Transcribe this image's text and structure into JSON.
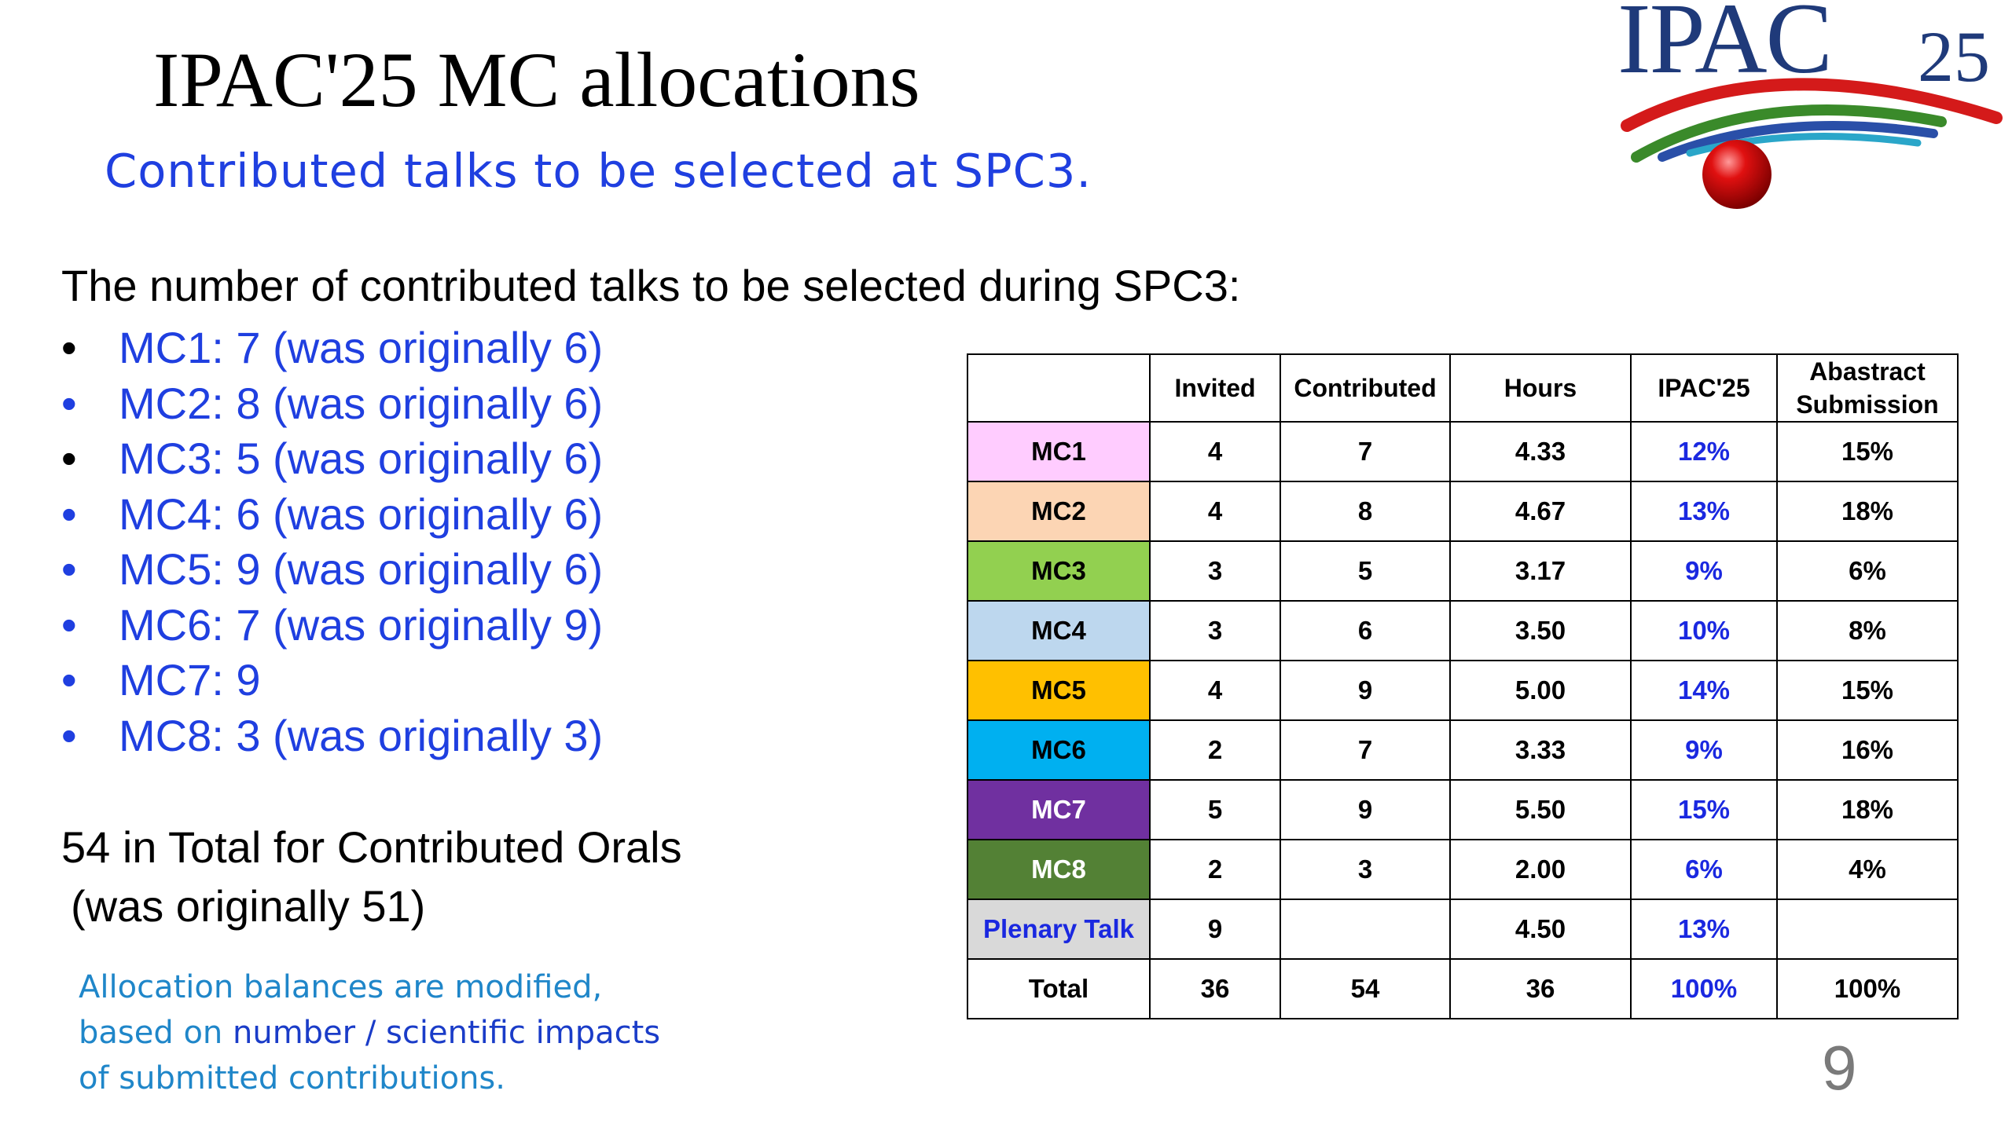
{
  "slide": {
    "title": "IPAC'25 MC allocations",
    "subtitle": "Contributed talks to be selected at SPC3.",
    "intro": "The number of contributed talks to be selected during SPC3:",
    "bullets": [
      "MC1: 7 (was originally 6)",
      "MC2: 8 (was originally 6)",
      "MC3: 5 (was originally 6)",
      "MC4: 6 (was originally 6)",
      "MC5: 9 (was originally 6)",
      "MC6: 7 (was originally 9)",
      "MC7: 9",
      "MC8: 3 (was originally 3)"
    ],
    "bullet_char": "•",
    "total_line1": "54 in Total for Contributed Orals",
    "total_line2": "(was originally 51)",
    "note_part1": "Allocation balances are modified,",
    "note_part2": "based on ",
    "note_highlight": "number / scientific impacts",
    "note_part3": "of submitted contributions.",
    "page_number": "9"
  },
  "logo": {
    "text": "IPAC",
    "year": "25",
    "colors": {
      "text": "#1f3a7a",
      "arc_red": "#d41a1a",
      "arc_green": "#3a8a2a",
      "arc_blue": "#2a4fa8",
      "arc_cyan": "#2aa6c9",
      "ball": "#e01010"
    }
  },
  "table": {
    "headers": [
      "",
      "Invited",
      "Contributed",
      "Hours",
      "IPAC'25",
      "Abastract Submission"
    ],
    "rows": [
      {
        "label": "MC1",
        "color": "#ffccff",
        "invited": "4",
        "contributed": "7",
        "hours": "4.33",
        "ipac": "12%",
        "submission": "15%"
      },
      {
        "label": "MC2",
        "color": "#fcd5b4",
        "invited": "4",
        "contributed": "8",
        "hours": "4.67",
        "ipac": "13%",
        "submission": "18%"
      },
      {
        "label": "MC3",
        "color": "#92d050",
        "invited": "3",
        "contributed": "5",
        "hours": "3.17",
        "ipac": "9%",
        "submission": "6%"
      },
      {
        "label": "MC4",
        "color": "#bdd7ee",
        "invited": "3",
        "contributed": "6",
        "hours": "3.50",
        "ipac": "10%",
        "submission": "8%"
      },
      {
        "label": "MC5",
        "color": "#ffc000",
        "invited": "4",
        "contributed": "9",
        "hours": "5.00",
        "ipac": "14%",
        "submission": "15%"
      },
      {
        "label": "MC6",
        "color": "#00b0f0",
        "invited": "2",
        "contributed": "7",
        "hours": "3.33",
        "ipac": "9%",
        "submission": "16%"
      },
      {
        "label": "MC7",
        "color": "#7030a0",
        "invited": "5",
        "contributed": "9",
        "hours": "5.50",
        "ipac": "15%",
        "submission": "18%"
      },
      {
        "label": "MC8",
        "color": "#538135",
        "invited": "2",
        "contributed": "3",
        "hours": "2.00",
        "ipac": "6%",
        "submission": "4%"
      },
      {
        "label": "Plenary Talk",
        "color": "#d9d9d9",
        "invited": "9",
        "contributed": "",
        "hours": "4.50",
        "ipac": "13%",
        "submission": ""
      },
      {
        "label": "Total",
        "color": "#ffffff",
        "invited": "36",
        "contributed": "54",
        "hours": "36",
        "ipac": "100%",
        "submission": "100%"
      }
    ]
  }
}
